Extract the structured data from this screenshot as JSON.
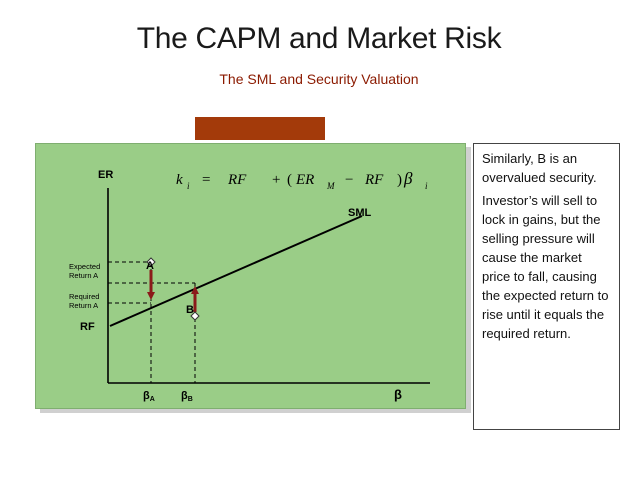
{
  "header": {
    "title": "The CAPM and Market Risk",
    "subtitle": "The SML and Security Valuation"
  },
  "diagram": {
    "y_axis_label": "ER",
    "x_axis_label": "β",
    "formula": {
      "k": "k",
      "k_sub": "i",
      "eq": "=",
      "rf1": "RF",
      "plus": "+",
      "lparen": "(",
      "er": "ER",
      "er_sub": "M",
      "minus": "−",
      "rf2": "RF",
      "rparen": ")",
      "beta": "β",
      "beta_sub": "i"
    },
    "line_label": "SML",
    "point_a": "A",
    "point_b": "B",
    "expected_return_a": [
      "Expected",
      "Return A"
    ],
    "required_return_a": [
      "Required",
      "Return A"
    ],
    "rf_label": "RF",
    "beta_a": {
      "base": "β",
      "sub": "A"
    },
    "beta_b": {
      "base": "β",
      "sub": "B"
    },
    "colors": {
      "panel": "#9ACD87",
      "arrow": "#8B1A1A",
      "band": "#A33A0A"
    }
  },
  "callout": {
    "para1": "Similarly, B is an overvalued security.",
    "para2": "Investor’s will sell to lock in gains, but the selling pressure will cause the market price to fall, causing the expected return to rise until it equals the required return."
  }
}
